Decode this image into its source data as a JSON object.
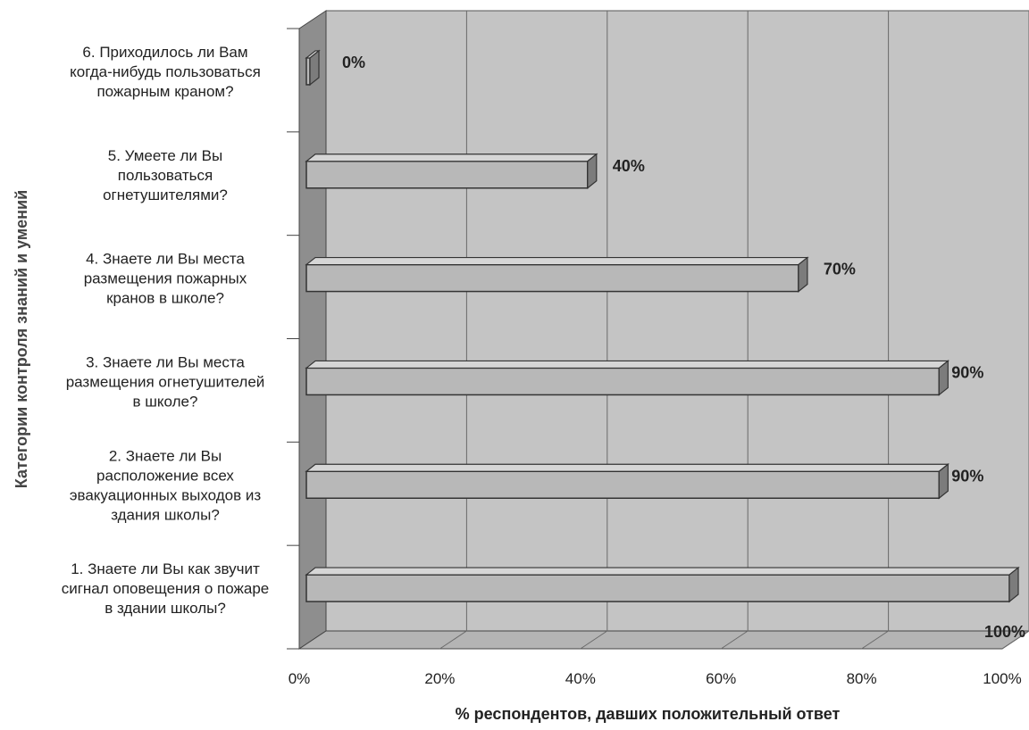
{
  "chart_data": {
    "type": "bar",
    "orientation": "horizontal",
    "style": "3d",
    "title": "",
    "xlabel": "% респондентов, давших положительный ответ",
    "ylabel": "Категории контроля знаний и умений",
    "xlim": [
      0,
      100
    ],
    "x_ticks": [
      "0%",
      "20%",
      "40%",
      "60%",
      "80%",
      "100%"
    ],
    "grid": true,
    "legend": "none",
    "categories": [
      [
        "1. Знаете ли Вы как звучит",
        "сигнал оповещения о пожаре",
        "в здании школы?"
      ],
      [
        "2. Знаете ли Вы",
        "расположение всех",
        "эвакуационных выходов из",
        "здания школы?"
      ],
      [
        "3. Знаете ли Вы места",
        "размещения огнетушителей",
        "в школе?"
      ],
      [
        "4. Знаете ли Вы места",
        "размещения пожарных",
        "кранов в школе?"
      ],
      [
        "5. Умеете ли Вы",
        "пользоваться",
        "огнетушителями?"
      ],
      [
        "6. Приходилось ли Вам",
        "когда-нибудь пользоваться",
        "пожарным краном?"
      ]
    ],
    "values": [
      100,
      90,
      90,
      70,
      40,
      0
    ],
    "data_labels": [
      "100%",
      "90%",
      "90%",
      "70%",
      "40%",
      "0%"
    ],
    "colors": {
      "plot_background": "#c4c4c4",
      "side_wall": "#8e8e8e",
      "floor": "#b4b4b4",
      "gridline": "#6a6a6a",
      "bar_front": "#b8b8b8",
      "bar_top": "#d6d6d6",
      "bar_side": "#7c7c7c",
      "bar_outline": "#333333",
      "text": "#222222"
    }
  }
}
